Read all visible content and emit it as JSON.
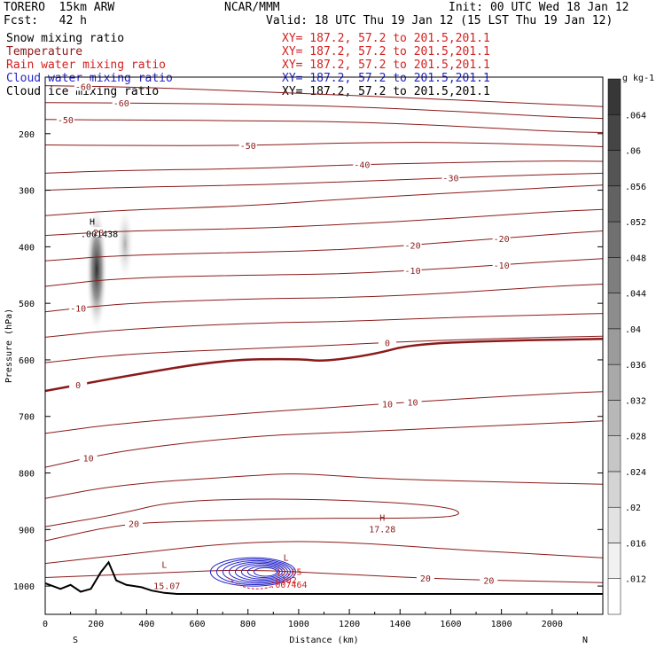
{
  "header": {
    "model": "TORERO  15km ARW",
    "center": "NCAR/MMM",
    "init": "Init: 00 UTC Wed 18 Jan 12",
    "fcst": "Fcst:   42 h",
    "valid": "Valid: 18 UTC Thu 19 Jan 12 (15 LST Thu 19 Jan 12)"
  },
  "fields": [
    {
      "name": "Snow mixing ratio",
      "xy": "XY= 187.2, 57.2 to 201.5,201.1",
      "color": "#000000"
    },
    {
      "name": "Temperature",
      "xy": "XY= 187.2, 57.2 to 201.5,201.1",
      "color": "#8b1a1a"
    },
    {
      "name": "Rain water mixing ratio",
      "xy": "XY= 187.2, 57.2 to 201.5,201.1",
      "color": "#d42020"
    },
    {
      "name": "Cloud water mixing ratio",
      "xy": "XY= 187.2, 57.2 to 201.5,201.1",
      "color": "#2424c8"
    },
    {
      "name": "Cloud ice mixing ratio",
      "xy": "XY= 187.2, 57.2 to 201.5,201.1",
      "color": "#000000"
    }
  ],
  "colors": {
    "temperature": "#8b1a1a",
    "rain": "#d42020",
    "cloud_water": "#2424c8",
    "terrain": "#000000"
  },
  "chart_data": {
    "type": "cross-section",
    "xlabel": "Distance (km)",
    "ylabel": "Pressure (hPa)",
    "xlim": [
      0,
      2200
    ],
    "ylim": [
      1050,
      100
    ],
    "x_ticks": [
      "0",
      "200",
      "400",
      "600",
      "800",
      "1000",
      "1200",
      "1400",
      "1600",
      "1800",
      "2000"
    ],
    "y_ticks": [
      "200",
      "300",
      "400",
      "500",
      "600",
      "700",
      "800",
      "900",
      "1000"
    ],
    "x_end_labels": {
      "left": "S",
      "right": "N"
    },
    "colorbar": {
      "unit": "g kg-1",
      "ticks": [
        ".012",
        ".016",
        ".02",
        ".024",
        ".028",
        ".032",
        ".036",
        ".04",
        ".044",
        ".048",
        ".052",
        ".056",
        ".06",
        ".064"
      ]
    },
    "temperature_contours": [
      {
        "level": -60,
        "points": [
          [
            0,
            115
          ],
          [
            400,
            118
          ],
          [
            800,
            125
          ],
          [
            1200,
            132
          ],
          [
            1600,
            140
          ],
          [
            2000,
            148
          ],
          [
            2200,
            152
          ]
        ]
      },
      {
        "level": -60,
        "points": [
          [
            0,
            145
          ],
          [
            400,
            146
          ],
          [
            800,
            148
          ],
          [
            1200,
            152
          ],
          [
            1600,
            160
          ],
          [
            2000,
            170
          ],
          [
            2200,
            173
          ]
        ]
      },
      {
        "level": -50,
        "points": [
          [
            0,
            175
          ],
          [
            400,
            176
          ],
          [
            800,
            177
          ],
          [
            1200,
            179
          ],
          [
            1600,
            186
          ],
          [
            2000,
            196
          ],
          [
            2200,
            198
          ]
        ]
      },
      {
        "level": -50,
        "points": [
          [
            0,
            220
          ],
          [
            300,
            221
          ],
          [
            800,
            221
          ],
          [
            1200,
            216
          ],
          [
            1600,
            215
          ],
          [
            2000,
            220
          ],
          [
            2200,
            223
          ]
        ]
      },
      {
        "level": -40,
        "points": [
          [
            0,
            270
          ],
          [
            300,
            265
          ],
          [
            800,
            262
          ],
          [
            1200,
            255
          ],
          [
            1600,
            251
          ],
          [
            2000,
            248
          ],
          [
            2200,
            249
          ]
        ]
      },
      {
        "level": -30,
        "points": [
          [
            0,
            300
          ],
          [
            300,
            295
          ],
          [
            800,
            291
          ],
          [
            1200,
            285
          ],
          [
            1600,
            278
          ],
          [
            2000,
            272
          ],
          [
            2200,
            270
          ]
        ]
      },
      {
        "level": -30,
        "points": [
          [
            0,
            345
          ],
          [
            300,
            335
          ],
          [
            800,
            328
          ],
          [
            1200,
            315
          ],
          [
            1600,
            305
          ],
          [
            2000,
            295
          ],
          [
            2200,
            291
          ]
        ]
      },
      {
        "level": -20,
        "points": [
          [
            0,
            380
          ],
          [
            300,
            372
          ],
          [
            800,
            368
          ],
          [
            1200,
            360
          ],
          [
            1600,
            350
          ],
          [
            2000,
            338
          ],
          [
            2200,
            334
          ]
        ]
      },
      {
        "level": -20,
        "points": [
          [
            0,
            425
          ],
          [
            300,
            415
          ],
          [
            800,
            410
          ],
          [
            1200,
            405
          ],
          [
            1600,
            392
          ],
          [
            2000,
            378
          ],
          [
            2200,
            372
          ]
        ]
      },
      {
        "level": -10,
        "points": [
          [
            0,
            470
          ],
          [
            300,
            455
          ],
          [
            800,
            450
          ],
          [
            1200,
            448
          ],
          [
            1600,
            438
          ],
          [
            2000,
            426
          ],
          [
            2200,
            421
          ]
        ]
      },
      {
        "level": -10,
        "points": [
          [
            0,
            515
          ],
          [
            300,
            500
          ],
          [
            800,
            492
          ],
          [
            1200,
            490
          ],
          [
            1600,
            482
          ],
          [
            2000,
            470
          ],
          [
            2200,
            466
          ]
        ]
      },
      {
        "level": -10,
        "points": [
          [
            0,
            560
          ],
          [
            300,
            546
          ],
          [
            800,
            535
          ],
          [
            1200,
            532
          ],
          [
            1600,
            525
          ],
          [
            2000,
            520
          ],
          [
            2200,
            518
          ]
        ]
      },
      {
        "level": 0,
        "points": [
          [
            0,
            605
          ],
          [
            300,
            590
          ],
          [
            800,
            580
          ],
          [
            1100,
            575
          ],
          [
            1400,
            568
          ],
          [
            1800,
            562
          ],
          [
            2200,
            558
          ]
        ]
      },
      {
        "level": 0,
        "points": [
          [
            0,
            655
          ],
          [
            300,
            630
          ],
          [
            700,
            600
          ],
          [
            1000,
            598
          ],
          [
            1100,
            603
          ],
          [
            1300,
            590
          ],
          [
            1450,
            572
          ],
          [
            1800,
            566
          ],
          [
            2200,
            563
          ]
        ]
      },
      {
        "level": 10,
        "points": [
          [
            0,
            730
          ],
          [
            300,
            712
          ],
          [
            800,
            694
          ],
          [
            1200,
            682
          ],
          [
            1600,
            670
          ],
          [
            2000,
            660
          ],
          [
            2200,
            656
          ]
        ]
      },
      {
        "level": 10,
        "points": [
          [
            0,
            790
          ],
          [
            300,
            760
          ],
          [
            800,
            735
          ],
          [
            1200,
            728
          ],
          [
            1600,
            720
          ],
          [
            2000,
            712
          ],
          [
            2200,
            708
          ]
        ]
      },
      {
        "level": 10,
        "points": [
          [
            0,
            845
          ],
          [
            300,
            820
          ],
          [
            800,
            805
          ],
          [
            1000,
            800
          ],
          [
            1300,
            810
          ],
          [
            1700,
            815
          ],
          [
            2200,
            820
          ]
        ]
      },
      {
        "level": 20,
        "points": [
          [
            0,
            920
          ],
          [
            300,
            890
          ],
          [
            600,
            885
          ],
          [
            1000,
            880
          ],
          [
            1500,
            880
          ],
          [
            1650,
            875
          ],
          [
            1600,
            860
          ],
          [
            1300,
            850
          ],
          [
            900,
            845
          ],
          [
            500,
            850
          ],
          [
            300,
            872
          ],
          [
            0,
            895
          ]
        ]
      },
      {
        "level": 20,
        "points": [
          [
            0,
            960
          ],
          [
            300,
            945
          ],
          [
            700,
            925
          ],
          [
            1000,
            920
          ],
          [
            1300,
            925
          ],
          [
            1600,
            935
          ],
          [
            2000,
            945
          ],
          [
            2200,
            950
          ]
        ]
      },
      {
        "level": 20,
        "points": [
          [
            0,
            985
          ],
          [
            400,
            978
          ],
          [
            800,
            970
          ],
          [
            1200,
            980
          ],
          [
            1600,
            988
          ],
          [
            2000,
            992
          ],
          [
            2200,
            994
          ]
        ]
      }
    ],
    "thick_contours": [
      {
        "level": 0,
        "points": [
          [
            0,
            655
          ],
          [
            300,
            630
          ],
          [
            700,
            600
          ],
          [
            1000,
            598
          ],
          [
            1100,
            603
          ],
          [
            1300,
            590
          ],
          [
            1450,
            572
          ],
          [
            1800,
            566
          ],
          [
            2200,
            563
          ]
        ]
      }
    ],
    "snow_max": {
      "x": 210,
      "p": 380,
      "label": ".001438",
      "marker": "H"
    },
    "terrain": [
      [
        0,
        995
      ],
      [
        60,
        1005
      ],
      [
        100,
        998
      ],
      [
        140,
        1010
      ],
      [
        180,
        1005
      ],
      [
        220,
        975
      ],
      [
        250,
        958
      ],
      [
        280,
        990
      ],
      [
        320,
        998
      ],
      [
        380,
        1002
      ],
      [
        420,
        1008
      ],
      [
        470,
        1012
      ],
      [
        520,
        1014
      ],
      [
        2200,
        1014
      ]
    ],
    "extrema_labels": [
      {
        "text": "L",
        "x": 470,
        "p": 968
      },
      {
        "text": "15.07",
        "x": 480,
        "p": 1005
      },
      {
        "text": "H",
        "x": 1330,
        "p": 885
      },
      {
        "text": "17.28",
        "x": 1330,
        "p": 905
      },
      {
        "text": "L",
        "x": 950,
        "p": 955
      },
      {
        "text": "13.65",
        "x": 960,
        "p": 980
      },
      {
        "text": ".6202",
        "x": 940,
        "p": 995
      },
      {
        "text": ".007464",
        "x": 960,
        "p": 1003
      }
    ]
  }
}
